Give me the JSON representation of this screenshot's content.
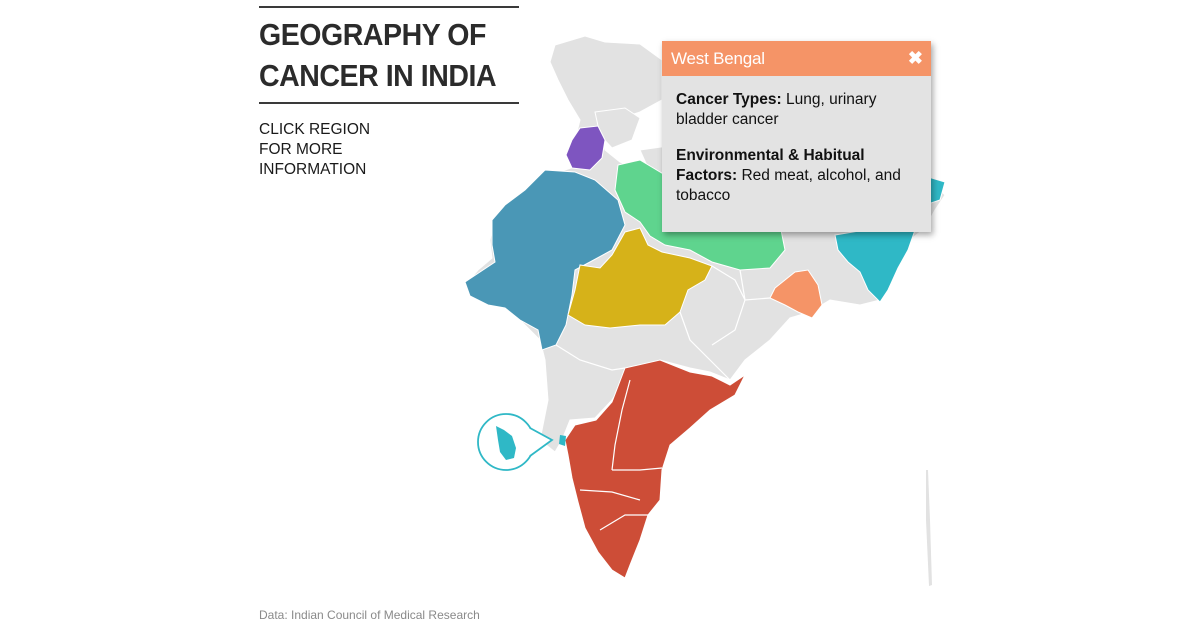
{
  "header": {
    "title_line1": "GEOGRAPHY OF",
    "title_line2": "CANCER IN INDIA",
    "instruction_line1": "CLICK REGION",
    "instruction_line2": "FOR MORE",
    "instruction_line3": "INFORMATION"
  },
  "source": "Data: Indian Council of Medical Research",
  "popup": {
    "region": "West Bengal",
    "close_icon": "close-icon",
    "cancer_types_label": "Cancer Types:",
    "cancer_types_value": "Lung, urinary bladder cancer",
    "factors_label": "Environmental & Habitual Factors:",
    "factors_value": "Red meat, alcohol, and tobacco"
  },
  "colors": {
    "base_land": "#e2e2e2",
    "border": "#ffffff",
    "purple": "#7e55c0",
    "blue": "#4a97b6",
    "green": "#5fd48e",
    "yellow": "#d6b219",
    "teal": "#2fb8c6",
    "orange": "#f59467",
    "red": "#cd4d37",
    "popup_header": "#f59467",
    "popup_body": "#e3e3e3"
  }
}
